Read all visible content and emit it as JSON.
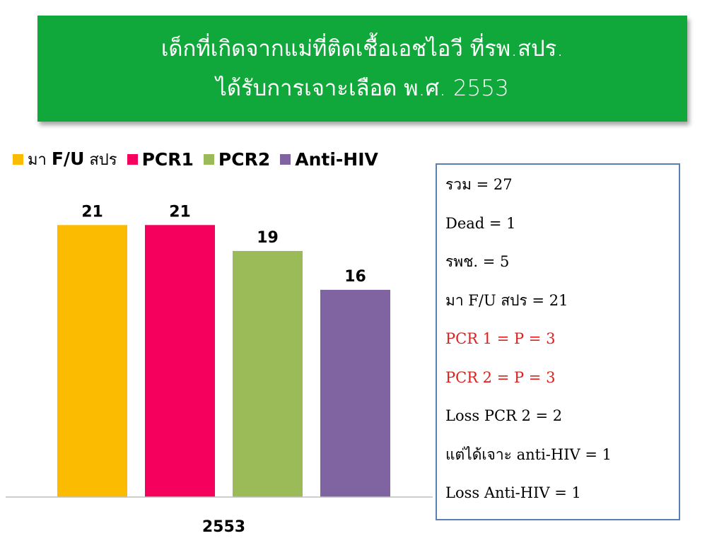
{
  "title": {
    "line1": "เด็กที่เกิดจากแม่ที่ติดเชื้อเอชไอวี ที่รพ.สปร.",
    "line2": "ได้รับการเจาะเลือด พ.ศ. 2553"
  },
  "legend": [
    {
      "thai_prefix": "มา ",
      "bold": "F/U",
      "thai_suffix": " สปร",
      "color": "#fbbb00"
    },
    {
      "thai_prefix": "",
      "bold": "PCR1",
      "thai_suffix": "",
      "color": "#f5005c"
    },
    {
      "thai_prefix": "",
      "bold": "PCR2",
      "thai_suffix": "",
      "color": "#9bbb59"
    },
    {
      "thai_prefix": "",
      "bold": "Anti-HIV",
      "thai_suffix": "",
      "color": "#8064a2"
    }
  ],
  "chart_data": {
    "type": "bar",
    "categories": [
      "2553"
    ],
    "series": [
      {
        "name": "มา F/U สปร",
        "values": [
          21
        ],
        "color": "#fbbb00"
      },
      {
        "name": "PCR1",
        "values": [
          21
        ],
        "color": "#f5005c"
      },
      {
        "name": "PCR2",
        "values": [
          19
        ],
        "color": "#9bbb59"
      },
      {
        "name": "Anti-HIV",
        "values": [
          16
        ],
        "color": "#8064a2"
      }
    ],
    "title": "",
    "xlabel": "",
    "ylabel": "",
    "ylim": [
      0,
      25
    ],
    "grid": false,
    "legend_position": "top"
  },
  "info_box": {
    "lines": [
      {
        "text": "รวม = 27",
        "color": "black"
      },
      {
        "text": "Dead = 1",
        "color": "black"
      },
      {
        "text": "รพช. = 5",
        "color": "black"
      },
      {
        "text": "มา F/U สปร = 21",
        "color": "black"
      },
      {
        "text": "PCR 1 = P = 3",
        "color": "red"
      },
      {
        "text": "PCR 2 = P = 3",
        "color": "red"
      },
      {
        "text": "Loss PCR 2 = 2",
        "color": "black"
      },
      {
        "text": "แต่ได้เจาะ anti-HIV = 1",
        "color": "black"
      },
      {
        "text": "Loss Anti-HIV = 1",
        "color": "black"
      }
    ]
  }
}
